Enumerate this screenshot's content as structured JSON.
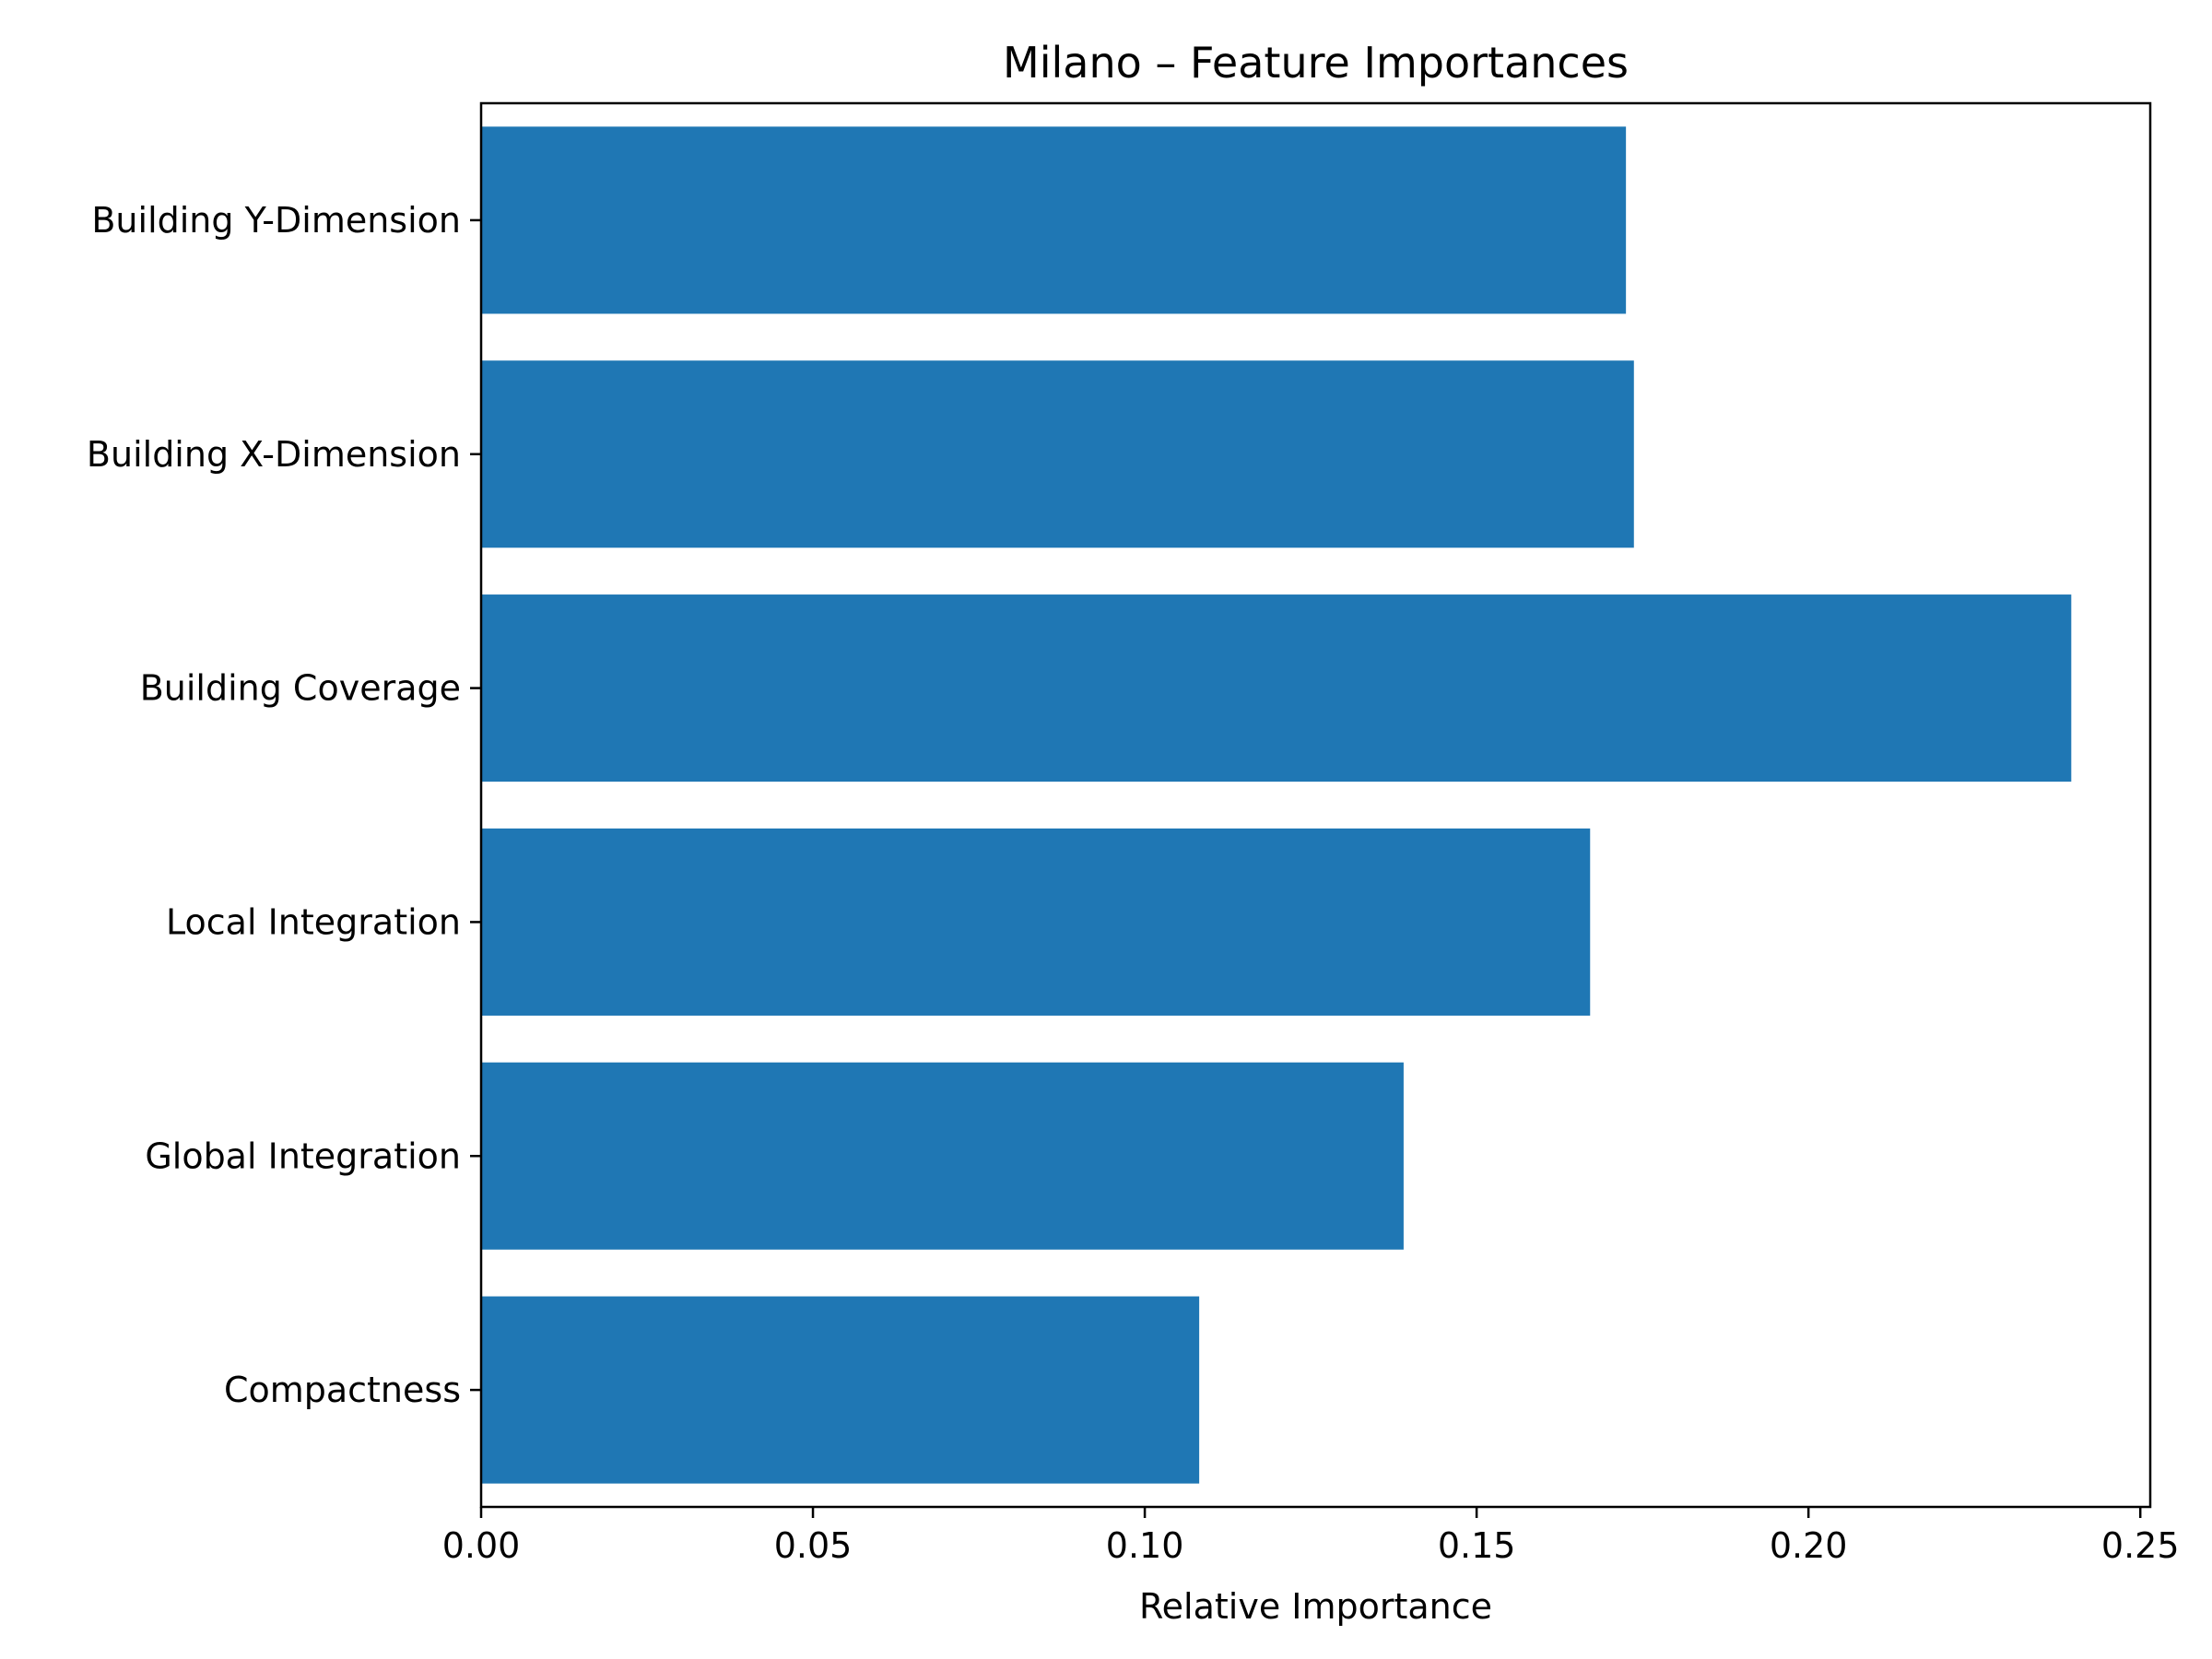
{
  "chart_data": {
    "type": "bar",
    "orientation": "horizontal",
    "title": "Milano – Feature Importances",
    "xlabel": "Relative Importance",
    "ylabel": "",
    "categories": [
      "Building Y-Dimension",
      "Building X-Dimension",
      "Building Coverage",
      "Local Integration",
      "Global Integration",
      "Compactness"
    ],
    "values": [
      0.1725,
      0.1737,
      0.2396,
      0.1671,
      0.139,
      0.1082
    ],
    "xlim": [
      0,
      0.2515
    ],
    "xticks": [
      0.0,
      0.05,
      0.1,
      0.15,
      0.2,
      0.25
    ],
    "xtick_labels": [
      "0.00",
      "0.05",
      "0.10",
      "0.15",
      "0.20",
      "0.25"
    ],
    "bar_color": "#1f77b4",
    "grid": false
  }
}
